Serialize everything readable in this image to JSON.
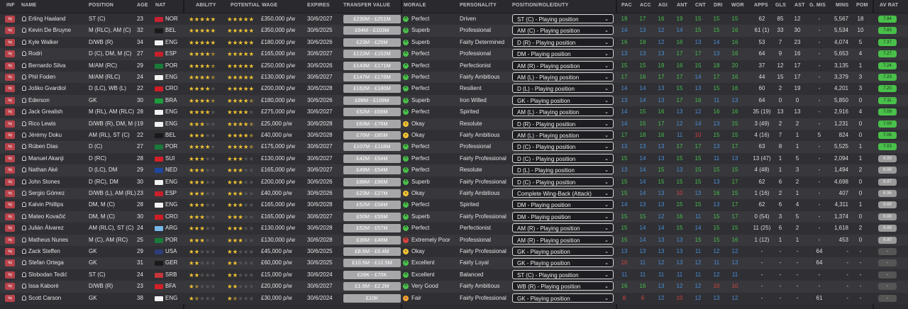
{
  "colors": {
    "green": "#49c04a",
    "blue": "#4a8fd6",
    "cyan": "#43c0c8",
    "red": "#d8453e",
    "star": "#f1c232",
    "row_a": "#2f2f34",
    "row_b": "#37373c"
  },
  "headers": {
    "inf": "INF",
    "name": "NAME",
    "position": "POSITION",
    "age": "AGE",
    "nat": "NAT",
    "ability": "ABILITY",
    "potential": "POTENTIAL",
    "wage": "WAGE",
    "expires": "EXPIRES",
    "transfer_value": "TRANSFER VALUE",
    "morale": "MORALE",
    "personality": "PERSONALITY",
    "role": "POSITION/ROLE/DUTY",
    "pac": "PAC",
    "acc": "ACC",
    "agi": "AGI",
    "ant": "ANT",
    "cnt": "CNT",
    "dri": "DRI",
    "wor": "WOR",
    "apps": "APPS",
    "gls": "GLS",
    "ast": "AST",
    "gmis": "G. MIS",
    "mins": "MINS",
    "pom": "POM",
    "avrat": "AV RAT"
  },
  "players": [
    {
      "name": "Erling Haaland",
      "position": "ST (C)",
      "age": "23",
      "nat": "NOR",
      "ability": 5,
      "potential": 5,
      "wage": "£350,000 p/w",
      "expires": "30/6/2027",
      "tv": "£230M - £251M",
      "morale": "Perfect",
      "personality": "Driven",
      "role": "ST (C) - Playing position",
      "pac": "19",
      "acc": "17",
      "agi": "16",
      "ant": "19",
      "cnt": "15",
      "dri": "15",
      "wor": "15",
      "apps": "62",
      "gls": "85",
      "ast": "12",
      "gmis": "-",
      "mins": "5,567",
      "pom": "18",
      "avrat": "7.94"
    },
    {
      "name": "Kevin De Bruyne",
      "position": "M (RLC), AM (C)",
      "age": "32",
      "nat": "BEL",
      "ability": 5,
      "potential": 5,
      "wage": "£350,000 p/w",
      "expires": "30/6/2025",
      "tv": "£94M - £103M",
      "morale": "Superb",
      "personality": "Professional",
      "role": "AM (C) - Playing position",
      "pac": "14",
      "acc": "13",
      "agi": "12",
      "ant": "14",
      "cnt": "15",
      "dri": "15",
      "wor": "16",
      "apps": "61 (1)",
      "gls": "33",
      "ast": "30",
      "gmis": "-",
      "mins": "5,534",
      "pom": "10",
      "avrat": "7.83"
    },
    {
      "name": "Kyle Walker",
      "position": "D/WB (R)",
      "age": "34",
      "nat": "ENG",
      "ability": 5,
      "potential": 5,
      "wage": "£180,000 p/w",
      "expires": "30/6/2026",
      "tv": "£23M - £25M",
      "morale": "Superb",
      "personality": "Fairly Determined",
      "role": "D (R) - Playing position",
      "pac": "16",
      "acc": "18",
      "agi": "12",
      "ant": "16",
      "cnt": "13",
      "dri": "14",
      "wor": "16",
      "apps": "53",
      "gls": "7",
      "ast": "23",
      "gmis": "-",
      "mins": "4,074",
      "pom": "5",
      "avrat": "7.37"
    },
    {
      "name": "Rodri",
      "position": "D (C), DM, M (C)",
      "age": "27",
      "nat": "ESP",
      "ability": 4.5,
      "potential": 5,
      "wage": "£165,000 p/w",
      "expires": "30/6/2027",
      "tv": "£122M - £152M",
      "morale": "Perfect",
      "personality": "Professional",
      "role": "DM - Playing position",
      "pac": "13",
      "acc": "13",
      "agi": "13",
      "ant": "17",
      "cnt": "17",
      "dri": "13",
      "wor": "16",
      "apps": "64",
      "gls": "9",
      "ast": "16",
      "gmis": "-",
      "mins": "5,653",
      "pom": "4",
      "avrat": "7.27"
    },
    {
      "name": "Bernardo Silva",
      "position": "M/AM (RC)",
      "age": "29",
      "nat": "POR",
      "ability": 4.5,
      "potential": 5,
      "wage": "£250,000 p/w",
      "expires": "30/6/2026",
      "tv": "£143M - £171M",
      "morale": "Perfect",
      "personality": "Perfectionist",
      "role": "AM (R) - Playing position",
      "pac": "15",
      "acc": "15",
      "agi": "19",
      "ant": "16",
      "cnt": "15",
      "dri": "18",
      "wor": "20",
      "apps": "37",
      "gls": "12",
      "ast": "17",
      "gmis": "-",
      "mins": "3,135",
      "pom": "1",
      "avrat": "7.24"
    },
    {
      "name": "Phil Foden",
      "position": "M/AM (RLC)",
      "age": "24",
      "nat": "ENG",
      "ability": 4.5,
      "potential": 5,
      "wage": "£130,000 p/w",
      "expires": "30/6/2027",
      "tv": "£147M - £176M",
      "morale": "Perfect",
      "personality": "Fairly Ambitious",
      "role": "AM (L) - Playing position",
      "pac": "17",
      "acc": "16",
      "agi": "17",
      "ant": "17",
      "cnt": "14",
      "dri": "17",
      "wor": "16",
      "apps": "44",
      "gls": "15",
      "ast": "17",
      "gmis": "-",
      "mins": "3,379",
      "pom": "3",
      "avrat": "7.23"
    },
    {
      "name": "Joško Gvardiol",
      "position": "D (LC), WB (L)",
      "age": "22",
      "nat": "CRO",
      "ability": 4,
      "potential": 5,
      "wage": "£200,000 p/w",
      "expires": "30/6/2028",
      "tv": "£162M - £180M",
      "morale": "Perfect",
      "personality": "Resilient",
      "role": "D (L) - Playing position",
      "pac": "14",
      "acc": "14",
      "agi": "13",
      "ant": "15",
      "cnt": "13",
      "dri": "15",
      "wor": "16",
      "apps": "60",
      "gls": "2",
      "ast": "19",
      "gmis": "-",
      "mins": "4,201",
      "pom": "3",
      "avrat": "7.20"
    },
    {
      "name": "Ederson",
      "position": "GK",
      "age": "30",
      "nat": "BRA",
      "ability": 4.5,
      "potential": 4.5,
      "wage": "£180,000 p/w",
      "expires": "30/6/2026",
      "tv": "£99M - £109M",
      "morale": "Superb",
      "personality": "Iron Willed",
      "role": "GK - Playing position",
      "pac": "13",
      "acc": "14",
      "agi": "13",
      "ant": "17",
      "cnt": "16",
      "dri": "11",
      "wor": "13",
      "apps": "64",
      "gls": "0",
      "ast": "0",
      "gmis": "-",
      "mins": "5,850",
      "pom": "0",
      "avrat": "7.11"
    },
    {
      "name": "Jack Grealish",
      "position": "M (RL), AM (RLC)",
      "age": "28",
      "nat": "ENG",
      "ability": 4,
      "potential": 4,
      "wage": "£275,000 p/w",
      "expires": "30/6/2027",
      "tv": "£52M - £69M",
      "morale": "Perfect",
      "personality": "Spirited",
      "role": "AM (L) - Playing position",
      "pac": "14",
      "acc": "15",
      "agi": "16",
      "ant": "13",
      "cnt": "12",
      "dri": "16",
      "wor": "16",
      "apps": "35 (19)",
      "gls": "13",
      "ast": "13",
      "gmis": "-",
      "mins": "2,916",
      "pom": "4",
      "avrat": "7.09"
    },
    {
      "name": "Rico Lewis",
      "position": "D/WB (R), DM, M (C)",
      "age": "19",
      "nat": "ENG",
      "ability": 3,
      "potential": 4.5,
      "wage": "£25,000 p/w",
      "expires": "30/6/2028",
      "tv": "£63M - £76M",
      "morale": "Okay",
      "personality": "Resolute",
      "role": "D (R) - Playing position",
      "pac": "14",
      "acc": "15",
      "agi": "17",
      "ant": "12",
      "cnt": "14",
      "dri": "13",
      "wor": "15",
      "apps": "3 (49)",
      "gls": "2",
      "ast": "2",
      "gmis": "-",
      "mins": "1,231",
      "pom": "0",
      "avrat": "7.09"
    },
    {
      "name": "Jérémy Doku",
      "position": "AM (RL), ST (C)",
      "age": "22",
      "nat": "BEL",
      "ability": 3,
      "potential": 4.5,
      "wage": "£40,000 p/w",
      "expires": "30/6/2028",
      "tv": "£76M - £85M",
      "morale": "Okay",
      "personality": "Fairly Ambitious",
      "role": "AM (L) - Playing position",
      "pac": "17",
      "acc": "18",
      "agi": "16",
      "ant": "11",
      "cnt": "10",
      "dri": "15",
      "wor": "15",
      "apps": "4 (16)",
      "gls": "7",
      "ast": "1",
      "gmis": "5",
      "mins": "824",
      "pom": "0",
      "avrat": "7.06"
    },
    {
      "name": "Rúben Dias",
      "position": "D (C)",
      "age": "27",
      "nat": "POR",
      "ability": 4,
      "potential": 4.5,
      "wage": "£175,000 p/w",
      "expires": "30/6/2027",
      "tv": "£107M - £118M",
      "morale": "Perfect",
      "personality": "Professional",
      "role": "D (C) - Playing position",
      "pac": "13",
      "acc": "13",
      "agi": "13",
      "ant": "17",
      "cnt": "17",
      "dri": "13",
      "wor": "17",
      "apps": "63",
      "gls": "8",
      "ast": "1",
      "gmis": "-",
      "mins": "5,525",
      "pom": "1",
      "avrat": "7.03"
    },
    {
      "name": "Manuel Akanji",
      "position": "D (RC)",
      "age": "28",
      "nat": "SUI",
      "ability": 3,
      "potential": 3,
      "wage": "£130,000 p/w",
      "expires": "30/6/2027",
      "tv": "£42M - £54M",
      "morale": "Perfect",
      "personality": "Fairly Professional",
      "role": "D (C) - Playing position",
      "pac": "15",
      "acc": "14",
      "agi": "13",
      "ant": "15",
      "cnt": "15",
      "dri": "11",
      "wor": "13",
      "apps": "13 (47)",
      "gls": "1",
      "ast": "5",
      "gmis": "-",
      "mins": "2,094",
      "pom": "1",
      "avrat": "6.99"
    },
    {
      "name": "Nathan Aké",
      "position": "D (LC), DM",
      "age": "29",
      "nat": "NED",
      "ability": 3,
      "potential": 3,
      "wage": "£165,000 p/w",
      "expires": "30/6/2027",
      "tv": "£49M - £54M",
      "morale": "Perfect",
      "personality": "Resolute",
      "role": "D (L) - Playing position",
      "pac": "13",
      "acc": "14",
      "agi": "15",
      "ant": "13",
      "cnt": "15",
      "dri": "15",
      "wor": "15",
      "apps": "4 (48)",
      "gls": "1",
      "ast": "3",
      "gmis": "-",
      "mins": "1,494",
      "pom": "2",
      "avrat": "6.98"
    },
    {
      "name": "John Stones",
      "position": "D (RC), DM",
      "age": "30",
      "nat": "ENG",
      "ability": 3,
      "potential": 3,
      "wage": "£200,000 p/w",
      "expires": "30/6/2026",
      "tv": "£88M - £96M",
      "morale": "Superb",
      "personality": "Fairly Professional",
      "role": "D (C) - Playing position",
      "pac": "15",
      "acc": "14",
      "agi": "15",
      "ant": "15",
      "cnt": "15",
      "dri": "13",
      "wor": "17",
      "apps": "62",
      "gls": "6",
      "ast": "2",
      "gmis": "-",
      "mins": "4,698",
      "pom": "0",
      "avrat": "6.97"
    },
    {
      "name": "Sergio Gómez",
      "position": "D/WB (L), AM (RL)",
      "age": "23",
      "nat": "ESP",
      "ability": 3,
      "potential": 3,
      "wage": "£40,000 p/w",
      "expires": "30/6/2026",
      "tv": "£23M - £27M",
      "morale": "Okay",
      "personality": "Fairly Ambitious",
      "role": "Complete Wing-Back (Attack)",
      "pac": "15",
      "acc": "14",
      "agi": "13",
      "ant": "10",
      "cnt": "13",
      "dri": "16",
      "wor": "15",
      "apps": "1 (16)",
      "gls": "2",
      "ast": "1",
      "gmis": "-",
      "mins": "407",
      "pom": "0",
      "avrat": "6.96"
    },
    {
      "name": "Kalvin Phillips",
      "position": "DM, M (C)",
      "age": "28",
      "nat": "ENG",
      "ability": 3,
      "potential": 3,
      "wage": "£165,000 p/w",
      "expires": "30/6/2028",
      "tv": "£52M - £58M",
      "morale": "Perfect",
      "personality": "Spirited",
      "role": "DM - Playing position",
      "pac": "14",
      "acc": "13",
      "agi": "13",
      "ant": "15",
      "cnt": "15",
      "dri": "13",
      "wor": "17",
      "apps": "62",
      "gls": "6",
      "ast": "4",
      "gmis": "-",
      "mins": "4,311",
      "pom": "1",
      "avrat": "6.89"
    },
    {
      "name": "Mateo Kovačić",
      "position": "DM, M (C)",
      "age": "30",
      "nat": "CRO",
      "ability": 3,
      "potential": 3,
      "wage": "£165,000 p/w",
      "expires": "30/6/2027",
      "tv": "£50M - £55M",
      "morale": "Superb",
      "personality": "Fairly Professional",
      "role": "DM - Playing position",
      "pac": "15",
      "acc": "15",
      "agi": "12",
      "ant": "16",
      "cnt": "11",
      "dri": "15",
      "wor": "17",
      "apps": "0 (54)",
      "gls": "3",
      "ast": "5",
      "gmis": "-",
      "mins": "1,374",
      "pom": "0",
      "avrat": "6.88"
    },
    {
      "name": "Julián Álvarez",
      "position": "AM (RLC), ST (C)",
      "age": "24",
      "nat": "ARG",
      "ability": 3,
      "potential": 3,
      "wage": "£130,000 p/w",
      "expires": "30/6/2028",
      "tv": "£52M - £57M",
      "morale": "Perfect",
      "personality": "Perfectionist",
      "role": "AM (R) - Playing position",
      "pac": "15",
      "acc": "14",
      "agi": "14",
      "ant": "15",
      "cnt": "14",
      "dri": "15",
      "wor": "15",
      "apps": "11 (25)",
      "gls": "6",
      "ast": "2",
      "gmis": "-",
      "mins": "1,618",
      "pom": "2",
      "avrat": "6.88"
    },
    {
      "name": "Matheus Nunes",
      "position": "M (C), AM (RC)",
      "age": "25",
      "nat": "POR",
      "ability": 3,
      "potential": 3,
      "wage": "£130,000 p/w",
      "expires": "30/6/2028",
      "tv": "£36M - £48M",
      "morale": "Extremely Poor",
      "personality": "Professional",
      "role": "AM (R) - Playing position",
      "pac": "15",
      "acc": "14",
      "agi": "13",
      "ant": "13",
      "cnt": "15",
      "dri": "15",
      "wor": "16",
      "apps": "1 (12)",
      "gls": "1",
      "ast": "1",
      "gmis": "-",
      "mins": "453",
      "pom": "0",
      "avrat": "6.80"
    },
    {
      "name": "Zack Steffen",
      "position": "GK",
      "age": "29",
      "nat": "USA",
      "ability": 2,
      "potential": 2,
      "wage": "£45,000 p/w",
      "expires": "30/6/2025",
      "tv": "£8.6M - £9.4M",
      "morale": "Okay",
      "personality": "Fairly Professional",
      "role": "GK - Playing position",
      "pac": "13",
      "acc": "13",
      "agi": "13",
      "ant": "13",
      "cnt": "11",
      "dri": "12",
      "wor": "12",
      "apps": "-",
      "gls": "-",
      "ast": "-",
      "gmis": "64",
      "mins": "-",
      "pom": "-",
      "avrat": "-"
    },
    {
      "name": "Stefan Ortega",
      "position": "GK",
      "age": "31",
      "nat": "GER",
      "ability": 2,
      "potential": 2,
      "wage": "£60,000 p/w",
      "expires": "30/6/2025",
      "tv": "£10.5M - £12.5M",
      "morale": "Excellent",
      "personality": "Fairly Loyal",
      "role": "GK - Playing position",
      "pac": "10",
      "acc": "11",
      "agi": "12",
      "ant": "13",
      "cnt": "12",
      "dri": "11",
      "wor": "13",
      "apps": "-",
      "gls": "-",
      "ast": "-",
      "gmis": "64",
      "mins": "-",
      "pom": "-",
      "avrat": "-"
    },
    {
      "name": "Slobodan Tedić",
      "position": "ST (C)",
      "age": "24",
      "nat": "SRB",
      "ability": 2,
      "potential": 2,
      "wage": "£15,000 p/w",
      "expires": "30/6/2024",
      "tv": "£28K - £70K",
      "morale": "Excellent",
      "personality": "Balanced",
      "role": "ST (C) - Playing position",
      "pac": "11",
      "acc": "11",
      "agi": "11",
      "ant": "11",
      "cnt": "11",
      "dri": "12",
      "wor": "11",
      "apps": "-",
      "gls": "-",
      "ast": "-",
      "gmis": "-",
      "mins": "-",
      "pom": "-",
      "avrat": "-"
    },
    {
      "name": "Issa Kaboré",
      "position": "D/WB (R)",
      "age": "23",
      "nat": "BFA",
      "ability": 1.5,
      "potential": 2,
      "wage": "£20,000 p/w",
      "expires": "30/6/2027",
      "tv": "£1.6M - £2.2M",
      "morale": "Very Good",
      "personality": "Fairly Ambitious",
      "role": "WB (R) - Playing position",
      "pac": "16",
      "acc": "16",
      "agi": "13",
      "ant": "12",
      "cnt": "12",
      "dri": "10",
      "wor": "10",
      "apps": "-",
      "gls": "-",
      "ast": "-",
      "gmis": "-",
      "mins": "-",
      "pom": "-",
      "avrat": "-"
    },
    {
      "name": "Scott Carson",
      "position": "GK",
      "age": "38",
      "nat": "ENG",
      "ability": 1.5,
      "potential": 1.5,
      "wage": "£30,000 p/w",
      "expires": "30/6/2024",
      "tv": "£10K",
      "morale": "Fair",
      "personality": "Fairly Professional",
      "role": "GK - Playing position",
      "pac": "8",
      "acc": "6",
      "agi": "12",
      "ant": "10",
      "cnt": "12",
      "dri": "13",
      "wor": "12",
      "apps": "-",
      "gls": "-",
      "ast": "-",
      "gmis": "61",
      "mins": "-",
      "pom": "-",
      "avrat": "-"
    }
  ]
}
